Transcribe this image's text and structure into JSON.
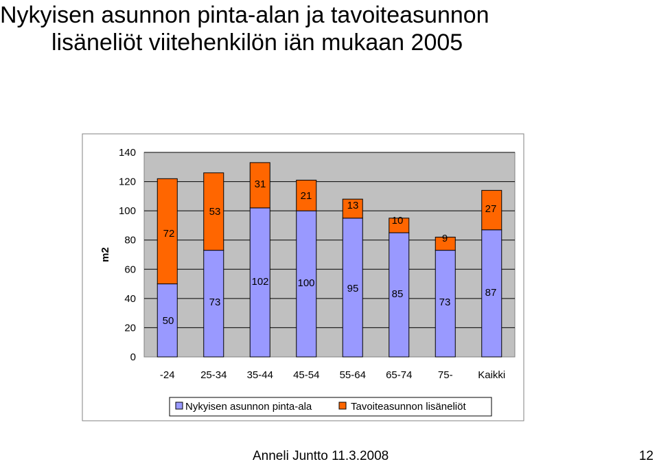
{
  "slide": {
    "title_line1": "Nykyisen asunnon pinta-alan ja tavoiteasunnon",
    "title_line2": "lisäneliöt viitehenkilön iän mukaan 2005",
    "footer_author": "Anneli Juntto 11.3.2008",
    "page_number": "12"
  },
  "colors": {
    "current": "#9999ff",
    "additional": "#ff6600",
    "plot_bg": "#c0c0c0"
  },
  "chart_data": {
    "type": "bar",
    "stacked": true,
    "ylabel": "m2",
    "xlabel": "",
    "ylim": [
      0,
      140
    ],
    "yticks": [
      0,
      20,
      40,
      60,
      80,
      100,
      120,
      140
    ],
    "grid": "horizontal",
    "legend": "bottom",
    "categories": [
      "-24",
      "25-34",
      "35-44",
      "45-54",
      "55-64",
      "65-74",
      "75-",
      "Kaikki"
    ],
    "series": [
      {
        "name": "Nykyisen asunnon pinta-ala",
        "values": [
          50,
          73,
          102,
          100,
          95,
          85,
          73,
          87
        ]
      },
      {
        "name": "Tavoiteasunnon lisäneliöt",
        "values": [
          72,
          53,
          31,
          21,
          13,
          10,
          9,
          27
        ]
      }
    ]
  }
}
